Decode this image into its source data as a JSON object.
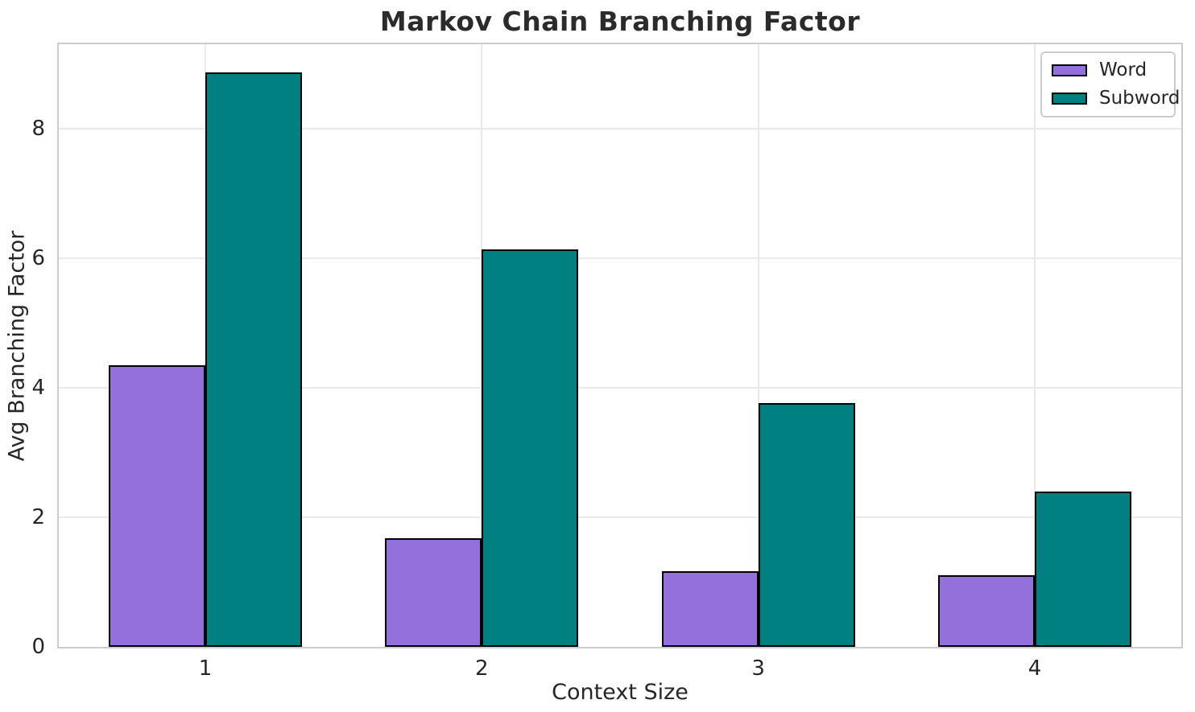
{
  "title": "Markov Chain Branching Factor",
  "chart_data": {
    "type": "bar",
    "title": "Markov Chain Branching Factor",
    "xlabel": "Context Size",
    "ylabel": "Avg Branching Factor",
    "categories": [
      "1",
      "2",
      "3",
      "4"
    ],
    "x_positions": [
      1,
      2,
      3,
      4
    ],
    "series": [
      {
        "name": "Word",
        "color": "#9370DB",
        "values": [
          4.35,
          1.68,
          1.17,
          1.1
        ]
      },
      {
        "name": "Subword",
        "color": "#008080",
        "values": [
          8.87,
          6.13,
          3.76,
          2.4
        ]
      }
    ],
    "bar_width_units": 0.35,
    "xlim": [
      0.47,
      4.53
    ],
    "ylim": [
      0,
      9.3
    ],
    "yticks": [
      0,
      2,
      4,
      6,
      8
    ],
    "grid": true,
    "legend_position": "upper right",
    "bar_edge_color": "#000000",
    "grid_color": "#e9e9e9",
    "spine_color": "#cccccc",
    "text_color": "#262626",
    "background_color": "#ffffff"
  }
}
